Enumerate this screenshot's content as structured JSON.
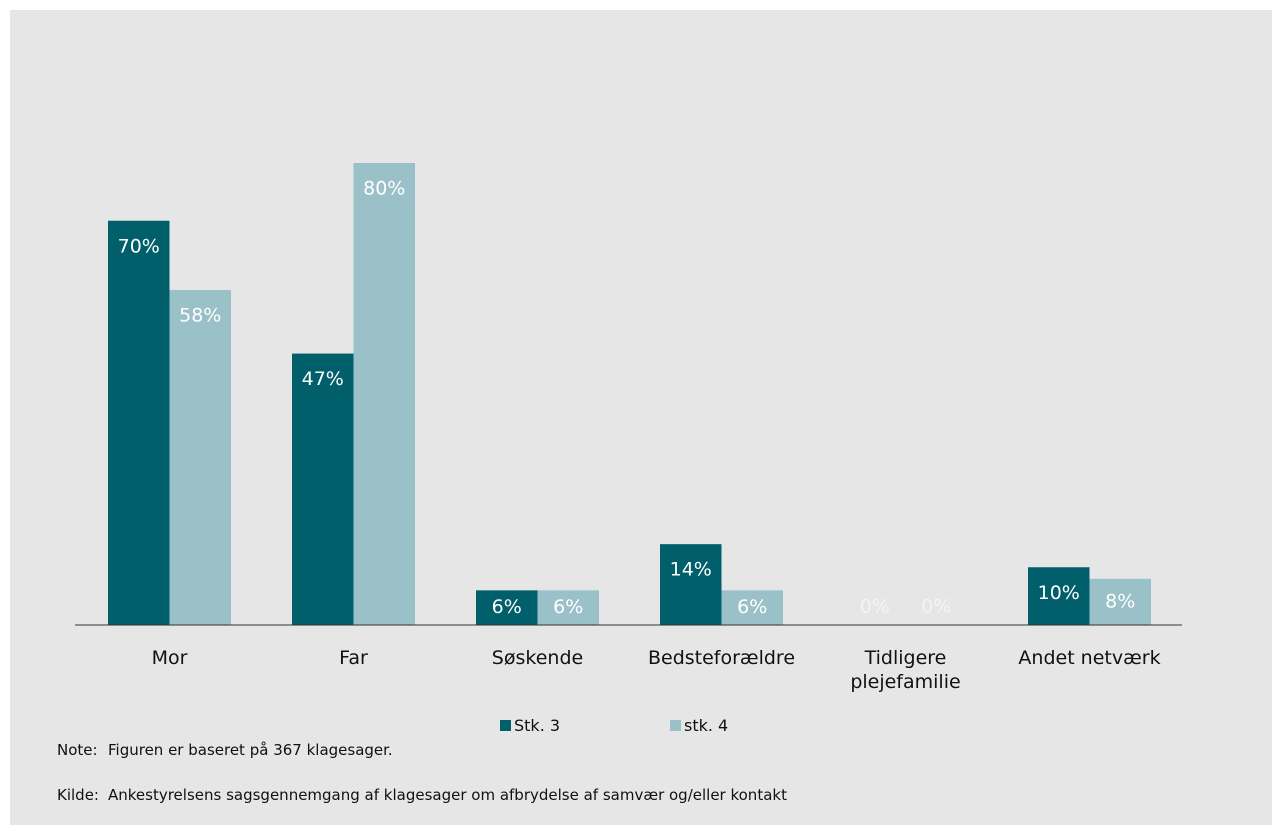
{
  "chart_data": {
    "type": "bar",
    "categories": [
      "Mor",
      "Far",
      "Søskende",
      "Bedsteforældre",
      "Tidligere plejefamilie",
      "Andet netværk"
    ],
    "series": [
      {
        "name": "Stk. 3",
        "color": "#005f6b",
        "values": [
          70,
          47,
          6,
          14,
          0,
          10
        ],
        "value_labels": [
          "70%",
          "47%",
          "6%",
          "14%",
          "0%",
          "10%"
        ]
      },
      {
        "name": "stk. 4",
        "color": "#9bc1c8",
        "values": [
          58,
          80,
          6,
          6,
          0,
          8
        ],
        "value_labels": [
          "58%",
          "80%",
          "6%",
          "6%",
          "0%",
          "8%"
        ]
      }
    ],
    "legend": "bottom",
    "note": {
      "label": "Note:",
      "text": "Figuren er baseret på 367 klagesager."
    },
    "source": {
      "label": "Kilde:",
      "text": "Ankestyrelsens sagsgennemgang af klagesager om afbrydelse af samvær og/eller kontakt"
    }
  }
}
